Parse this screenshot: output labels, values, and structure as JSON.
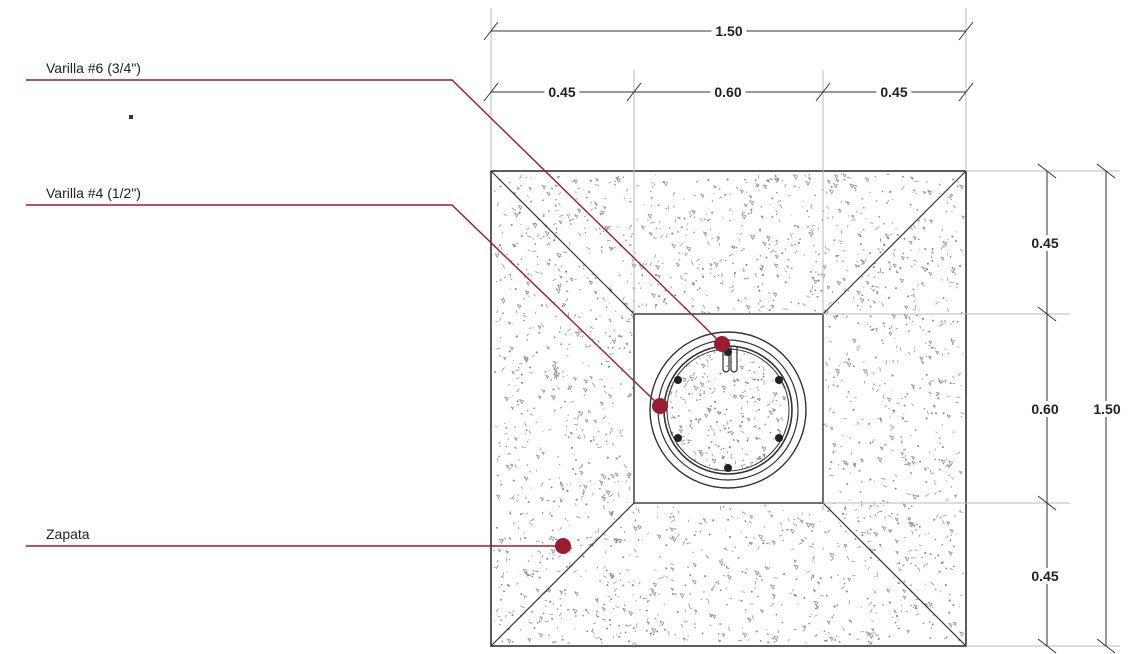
{
  "colors": {
    "callout": "#9b1c31",
    "line": "#333333",
    "concrete_speck": "#8a8a8a",
    "background": "#ffffff"
  },
  "callouts": {
    "varilla6": "Varilla #6 (3/4\")",
    "varilla4": "Varilla #4 (1/2\")",
    "zapata": "Zapata"
  },
  "dimensions": {
    "top_total": "1.50",
    "top_left": "0.45",
    "top_center": "0.60",
    "top_right": "0.45",
    "right_top": "0.45",
    "right_center": "0.60",
    "right_bottom": "0.45",
    "right_total": "1.50"
  }
}
